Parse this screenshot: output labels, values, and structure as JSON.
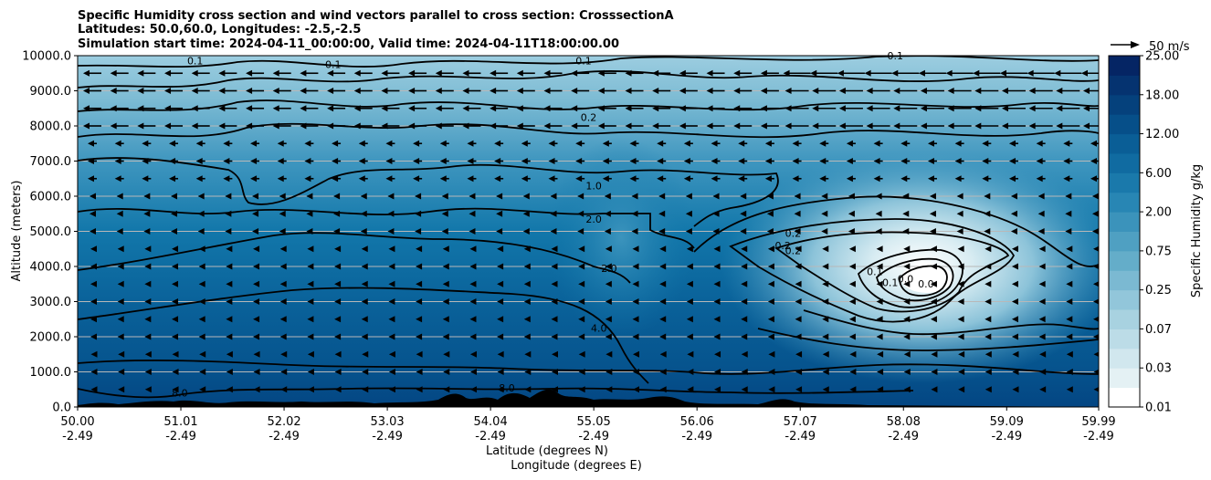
{
  "chart_data": {
    "type": "contour",
    "title_lines": [
      "Specific Humidity cross section and wind vectors parallel to cross section: CrosssectionA",
      "Latitudes: 50.0,60.0, Longitudes: -2.5,-2.5",
      "Simulation start time: 2024-04-11_00:00:00, Valid time: 2024-04-11T18:00:00.00"
    ],
    "ylabel": "Altitude (meters)",
    "xlabel_lines": [
      "Latitude (degrees N)",
      "Longitude (degrees E)"
    ],
    "ylim": [
      0,
      10000
    ],
    "xlim": [
      50.0,
      59.99
    ],
    "y_ticks": [
      0,
      1000,
      2000,
      3000,
      4000,
      5000,
      6000,
      7000,
      8000,
      9000,
      10000
    ],
    "y_tick_labels": [
      "0.0",
      "1000.0",
      "2000.0",
      "3000.0",
      "4000.0",
      "5000.0",
      "6000.0",
      "7000.0",
      "8000.0",
      "9000.0",
      "10000.0"
    ],
    "grid_y": true,
    "x_ticks": [
      50.0,
      51.01,
      52.02,
      53.03,
      54.04,
      55.05,
      56.06,
      57.07,
      58.08,
      59.09,
      59.99
    ],
    "x_tick_labels": [
      "50.00",
      "51.01",
      "52.02",
      "53.03",
      "54.04",
      "55.05",
      "56.06",
      "57.07",
      "58.08",
      "59.09",
      "59.99"
    ],
    "x_tick_labels_2": [
      "-2.49",
      "-2.49",
      "-2.49",
      "-2.49",
      "-2.49",
      "-2.49",
      "-2.49",
      "-2.49",
      "-2.49",
      "-2.49",
      "-2.49"
    ],
    "colorbar": {
      "label": "Specific Humidity g/kg",
      "levels": [
        0.01,
        0.02,
        0.03,
        0.05,
        0.07,
        0.1,
        0.25,
        0.5,
        0.75,
        1.0,
        2.0,
        4.0,
        6.0,
        9.0,
        12.0,
        15.0,
        18.0,
        21.0,
        25.0
      ],
      "tick_labels": [
        "0.01",
        "0.03",
        "0.07",
        "0.25",
        "0.75",
        "2.00",
        "6.00",
        "12.00",
        "18.00",
        "25.00"
      ],
      "colors": [
        "#ffffff",
        "#e4f1f4",
        "#d1e7ee",
        "#bcdce7",
        "#a8d2e0",
        "#92c6da",
        "#7bb9d2",
        "#64adc9",
        "#4fa0c2",
        "#3b93bb",
        "#2886b4",
        "#1a79ab",
        "#106ba1",
        "#0a5e96",
        "#064f89",
        "#05417c",
        "#053370",
        "#052564"
      ]
    },
    "wind_key": {
      "label": "50 m/s"
    },
    "contour_labels": [
      {
        "text": "0.1",
        "x": 51.15,
        "y": 9800
      },
      {
        "text": "0.1",
        "x": 52.5,
        "y": 9700
      },
      {
        "text": "0.1",
        "x": 54.95,
        "y": 9800
      },
      {
        "text": "0.1",
        "x": 58.0,
        "y": 9950
      },
      {
        "text": "0.2",
        "x": 55.0,
        "y": 8200
      },
      {
        "text": "1.0",
        "x": 55.05,
        "y": 6250
      },
      {
        "text": "2.0",
        "x": 55.05,
        "y": 5300
      },
      {
        "text": "2.0",
        "x": 55.2,
        "y": 3900
      },
      {
        "text": "4.0",
        "x": 55.1,
        "y": 2200
      },
      {
        "text": "8.0",
        "x": 51.0,
        "y": 350
      },
      {
        "text": "8.0",
        "x": 54.2,
        "y": 500
      },
      {
        "text": "0.2",
        "x": 57.0,
        "y": 4900
      },
      {
        "text": "0.2",
        "x": 56.9,
        "y": 4550
      },
      {
        "text": "0.2",
        "x": 57.0,
        "y": 4400
      },
      {
        "text": "0.1",
        "x": 57.8,
        "y": 3800
      },
      {
        "text": "0.1",
        "x": 57.95,
        "y": 3500
      },
      {
        "text": "0.0",
        "x": 58.1,
        "y": 3600
      },
      {
        "text": "0.0",
        "x": 58.3,
        "y": 3450
      }
    ]
  }
}
